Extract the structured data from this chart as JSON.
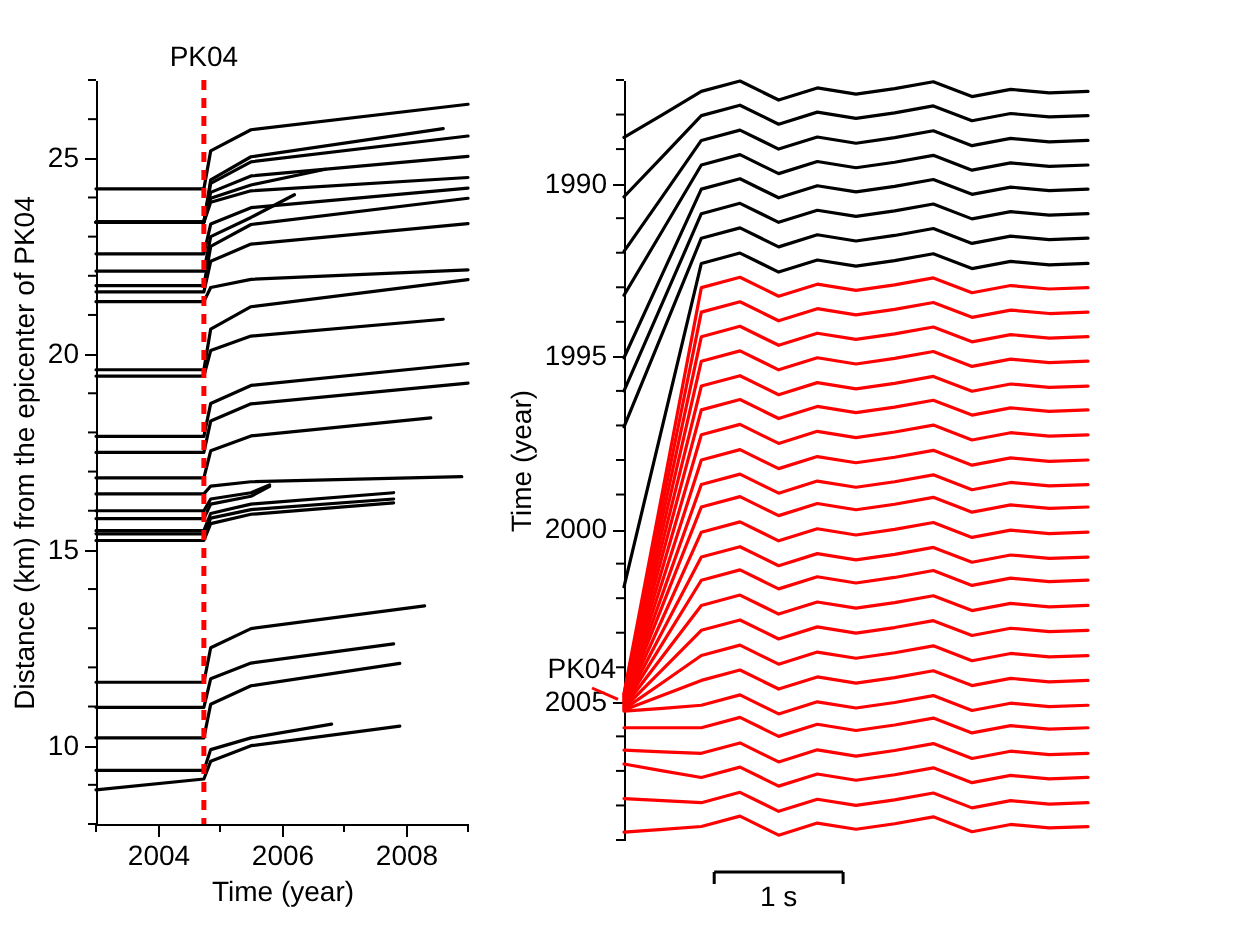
{
  "chart_data": [
    {
      "type": "line",
      "xlabel": "Time (year)",
      "ylabel": "Distance (km) from the epicenter of PK04",
      "xlim": [
        2003,
        2009
      ],
      "ylim": [
        8,
        27
      ],
      "xticks": [
        {
          "value": 2003,
          "label": null
        },
        2004,
        {
          "value": 2005,
          "label": null
        },
        2006,
        {
          "value": 2007,
          "label": null
        },
        2008,
        {
          "value": 2009,
          "label": null
        }
      ],
      "yticks": [
        {
          "value": 8,
          "label": null
        },
        {
          "value": 9,
          "label": null
        },
        10,
        {
          "value": 11,
          "label": null
        },
        {
          "value": 12,
          "label": null
        },
        {
          "value": 13,
          "label": null
        },
        {
          "value": 14,
          "label": null
        },
        15,
        {
          "value": 16,
          "label": null
        },
        {
          "value": 17,
          "label": null
        },
        {
          "value": 18,
          "label": null
        },
        {
          "value": 19,
          "label": null
        },
        20,
        {
          "value": 21,
          "label": null
        },
        {
          "value": 22,
          "label": null
        },
        {
          "value": 23,
          "label": null
        },
        {
          "value": 24,
          "label": null
        },
        25,
        {
          "value": 26,
          "label": null
        },
        {
          "value": 27,
          "label": null
        }
      ],
      "grid": false,
      "legend": false,
      "ref_lines": [
        {
          "axis": "x",
          "value": 2004.74,
          "label": "PK04",
          "color": "#ff0000",
          "line_style": "dashed"
        }
      ],
      "series": [
        {
          "color": "#000000",
          "x": [
            2003,
            2004.74,
            2004.85,
            2005.5,
            2009
          ],
          "values": [
            24.22,
            24.22,
            25.19,
            25.73,
            26.38
          ]
        },
        {
          "color": "#000000",
          "x": [
            2003,
            2004.74,
            2004.85,
            2005.5,
            2008.6
          ],
          "values": [
            23.37,
            23.37,
            24.45,
            25.04,
            25.76
          ]
        },
        {
          "color": "#000000",
          "x": [
            2003,
            2004.74,
            2004.85,
            2005.5,
            2009
          ],
          "values": [
            23.37,
            23.37,
            24.36,
            24.91,
            25.57
          ]
        },
        {
          "color": "#000000",
          "x": [
            2003,
            2004.74,
            2004.85,
            2005.5,
            2009
          ],
          "values": [
            23.37,
            23.37,
            24.13,
            24.55,
            25.05
          ]
        },
        {
          "color": "#000000",
          "x": [
            2003,
            2004.74,
            2004.85,
            2005.5,
            2006.7
          ],
          "values": [
            23.37,
            23.37,
            23.98,
            24.32,
            24.72
          ]
        },
        {
          "color": "#000000",
          "x": [
            2003,
            2004.74,
            2004.85,
            2005.5,
            2009
          ],
          "values": [
            23.37,
            23.37,
            23.88,
            24.17,
            24.51
          ]
        },
        {
          "color": "#000000",
          "x": [
            2003,
            2004.74,
            2004.85,
            2005.5,
            2009
          ],
          "values": [
            22.56,
            22.56,
            23.32,
            23.74,
            24.24
          ]
        },
        {
          "color": "#000000",
          "x": [
            2003,
            2004.74,
            2004.85,
            2005.5,
            2006.2
          ],
          "values": [
            22.12,
            22.12,
            23.0,
            23.49,
            24.07
          ]
        },
        {
          "color": "#000000",
          "x": [
            2003,
            2004.74,
            2004.85,
            2005.5,
            2009
          ],
          "values": [
            21.75,
            21.75,
            22.75,
            23.31,
            23.98
          ]
        },
        {
          "color": "#000000",
          "x": [
            2003,
            2004.74,
            2004.85,
            2005.5,
            2009
          ],
          "values": [
            21.59,
            21.59,
            22.37,
            22.81,
            23.33
          ]
        },
        {
          "color": "#000000",
          "x": [
            2003,
            2004.74,
            2004.85,
            2005.5,
            2009
          ],
          "values": [
            21.34,
            21.34,
            21.7,
            21.91,
            22.15
          ]
        },
        {
          "color": "#000000",
          "x": [
            2003,
            2004.74,
            2004.85,
            2005.5,
            2009
          ],
          "values": [
            19.6,
            19.6,
            20.64,
            21.21,
            21.9
          ]
        },
        {
          "color": "#000000",
          "x": [
            2003,
            2004.74,
            2004.85,
            2005.5,
            2008.6
          ],
          "values": [
            19.44,
            19.44,
            20.09,
            20.46,
            20.89
          ]
        },
        {
          "color": "#000000",
          "x": [
            2003,
            2004.74,
            2004.85,
            2005.5,
            2009
          ],
          "values": [
            17.9,
            17.9,
            18.74,
            19.2,
            19.76
          ]
        },
        {
          "color": "#000000",
          "x": [
            2003,
            2004.74,
            2004.85,
            2005.5,
            2009
          ],
          "values": [
            17.49,
            17.49,
            18.29,
            18.73,
            19.26
          ]
        },
        {
          "color": "#000000",
          "x": [
            2003,
            2004.74,
            2004.85,
            2005.5,
            2008.4
          ],
          "values": [
            16.84,
            16.84,
            17.53,
            17.91,
            18.37
          ]
        },
        {
          "color": "#000000",
          "x": [
            2003,
            2004.74,
            2004.85,
            2005.5,
            2008.9
          ],
          "values": [
            16.43,
            16.43,
            16.63,
            16.74,
            16.87
          ]
        },
        {
          "color": "#000000",
          "x": [
            2003,
            2004.74,
            2004.85,
            2005.5,
            2005.8
          ],
          "values": [
            16.0,
            16.0,
            16.3,
            16.46,
            16.66
          ]
        },
        {
          "color": "#000000",
          "x": [
            2003,
            2004.74,
            2004.85,
            2005.5,
            2005.8
          ],
          "values": [
            15.8,
            15.8,
            16.17,
            16.37,
            16.62
          ]
        },
        {
          "color": "#000000",
          "x": [
            2003,
            2004.74,
            2004.85,
            2005.5,
            2007.8
          ],
          "values": [
            15.49,
            15.49,
            15.93,
            16.17,
            16.46
          ]
        },
        {
          "color": "#000000",
          "x": [
            2003,
            2004.74,
            2004.85,
            2005.5,
            2007.8
          ],
          "values": [
            15.41,
            15.41,
            15.81,
            16.03,
            16.3
          ]
        },
        {
          "color": "#000000",
          "x": [
            2003,
            2004.74,
            2004.85,
            2005.5,
            2007.8
          ],
          "values": [
            15.24,
            15.24,
            15.67,
            15.91,
            16.2
          ]
        },
        {
          "color": "#000000",
          "x": [
            2003,
            2004.74,
            2004.85,
            2005.5,
            2008.3
          ],
          "values": [
            11.62,
            11.62,
            12.5,
            12.99,
            13.57
          ]
        },
        {
          "color": "#000000",
          "x": [
            2003,
            2004.74,
            2004.85,
            2005.5,
            2007.8
          ],
          "values": [
            10.98,
            10.98,
            11.71,
            12.11,
            12.6
          ]
        },
        {
          "color": "#000000",
          "x": [
            2003,
            2004.74,
            2004.85,
            2005.5,
            2007.9
          ],
          "values": [
            10.2,
            10.2,
            11.06,
            11.53,
            12.1
          ]
        },
        {
          "color": "#000000",
          "x": [
            2003,
            2004.74,
            2004.85,
            2005.5,
            2006.8
          ],
          "values": [
            9.37,
            9.37,
            9.9,
            10.2,
            10.55
          ]
        },
        {
          "color": "#000000",
          "x": [
            2003,
            2004.74,
            2004.85,
            2005.5,
            2007.9
          ],
          "values": [
            8.87,
            9.15,
            9.6,
            10.0,
            10.5
          ]
        }
      ]
    },
    {
      "type": "line",
      "ylabel": "Time (year)",
      "tick_labels": "y",
      "grid": false,
      "legend": false,
      "categories": [
        null,
        null,
        null,
        null,
        null,
        null,
        null,
        null,
        null,
        null,
        null,
        null,
        null
      ],
      "ylim": [
        2009,
        1987
      ],
      "yticks": [
        {
          "value": 1987,
          "label": null
        },
        {
          "value": 1988,
          "label": null
        },
        {
          "value": 1989,
          "label": null
        },
        1990,
        {
          "value": 1991,
          "label": null
        },
        {
          "value": 1992,
          "label": null
        },
        {
          "value": 1993,
          "label": null
        },
        {
          "value": 1994,
          "label": null
        },
        1995,
        {
          "value": 1996,
          "label": null
        },
        {
          "value": 1997,
          "label": null
        },
        {
          "value": 1998,
          "label": null
        },
        {
          "value": 1999,
          "label": null
        },
        2000,
        {
          "value": 2001,
          "label": null
        },
        {
          "value": 2002,
          "label": null
        },
        {
          "value": 2003,
          "label": null
        },
        {
          "value": 2004,
          "label": null
        },
        2005,
        {
          "value": 2006,
          "label": null
        },
        {
          "value": 2007,
          "label": null
        },
        {
          "value": 2008,
          "label": null
        },
        {
          "value": 2009,
          "label": null
        }
      ],
      "annotations": [
        "PK04",
        "1 s"
      ],
      "series": [
        {
          "color": "#000000",
          "values": [
            1988.66,
            1988.0,
            1987.33,
            1987.03,
            1987.58,
            1987.23,
            1987.41,
            1987.25,
            1987.05,
            1987.48,
            1987.27,
            1987.37,
            1987.33
          ]
        },
        {
          "color": "#000000",
          "values": [
            1990.38,
            1989.21,
            1988.03,
            1987.73,
            1988.28,
            1987.93,
            1988.11,
            1987.95,
            1987.75,
            1988.18,
            1987.97,
            1988.07,
            1988.03
          ]
        },
        {
          "color": "#000000",
          "values": [
            1991.96,
            1990.36,
            1988.75,
            1988.45,
            1989.0,
            1988.65,
            1988.83,
            1988.67,
            1988.47,
            1988.9,
            1988.69,
            1988.79,
            1988.75
          ]
        },
        {
          "color": "#000000",
          "values": [
            1993.23,
            1991.35,
            1989.46,
            1989.16,
            1989.71,
            1989.36,
            1989.54,
            1989.38,
            1989.18,
            1989.61,
            1989.4,
            1989.5,
            1989.46
          ]
        },
        {
          "color": "#000000",
          "values": [
            1995.04,
            1992.6,
            1990.16,
            1989.86,
            1990.41,
            1990.06,
            1990.24,
            1990.08,
            1989.88,
            1990.31,
            1990.1,
            1990.2,
            1990.16
          ]
        },
        {
          "color": "#000000",
          "values": [
            1996.0,
            1993.44,
            1990.87,
            1990.57,
            1991.12,
            1990.77,
            1990.95,
            1990.79,
            1990.59,
            1991.02,
            1990.81,
            1990.91,
            1990.87
          ]
        },
        {
          "color": "#000000",
          "values": [
            1997.04,
            1994.31,
            1991.58,
            1991.28,
            1991.83,
            1991.48,
            1991.66,
            1991.5,
            1991.3,
            1991.73,
            1991.52,
            1991.62,
            1991.58
          ]
        },
        {
          "color": "#000000",
          "values": [
            2001.67,
            1996.99,
            1992.31,
            1992.01,
            1992.56,
            1992.21,
            1992.39,
            1992.23,
            1992.03,
            1992.46,
            1992.25,
            1992.35,
            1992.31
          ]
        },
        {
          "color": "#ff0000",
          "values": [
            2004.76,
            1998.89,
            1993.01,
            1992.71,
            1993.26,
            1992.91,
            1993.09,
            1992.93,
            1992.73,
            1993.16,
            1992.95,
            1993.05,
            1993.01
          ]
        },
        {
          "color": "#ff0000",
          "values": [
            2004.79,
            1999.26,
            1993.72,
            1993.42,
            1993.97,
            1993.62,
            1993.8,
            1993.64,
            1993.44,
            1993.87,
            1993.66,
            1993.76,
            1993.72
          ]
        },
        {
          "color": "#ff0000",
          "values": [
            2004.82,
            1999.63,
            1994.43,
            1994.13,
            1994.68,
            1994.33,
            1994.51,
            1994.35,
            1994.15,
            1994.58,
            1994.37,
            1994.47,
            1994.43
          ]
        },
        {
          "color": "#ff0000",
          "values": [
            2004.85,
            2000.0,
            1995.14,
            1994.84,
            1995.39,
            1995.04,
            1995.22,
            1995.06,
            1994.86,
            1995.29,
            1995.08,
            1995.18,
            1995.14
          ]
        },
        {
          "color": "#ff0000",
          "values": [
            2004.88,
            2000.37,
            1995.86,
            1995.56,
            1996.11,
            1995.76,
            1995.94,
            1995.78,
            1995.58,
            1996.01,
            1995.8,
            1995.9,
            1995.86
          ]
        },
        {
          "color": "#ff0000",
          "values": [
            2004.91,
            2000.73,
            1996.55,
            1996.25,
            1996.8,
            1996.45,
            1996.63,
            1996.47,
            1996.27,
            1996.7,
            1996.49,
            1996.59,
            1996.55
          ]
        },
        {
          "color": "#ff0000",
          "values": [
            2004.94,
            2001.11,
            1997.27,
            1996.97,
            1997.52,
            1997.17,
            1997.35,
            1997.19,
            1996.99,
            1997.42,
            1997.21,
            1997.31,
            1997.27
          ]
        },
        {
          "color": "#ff0000",
          "values": [
            2004.97,
            2001.49,
            1998.0,
            1997.7,
            1998.25,
            1997.9,
            1998.08,
            1997.92,
            1997.72,
            1998.15,
            1997.94,
            1998.04,
            1998.0
          ]
        },
        {
          "color": "#ff0000",
          "values": [
            2005.0,
            2001.86,
            1998.71,
            1998.41,
            1998.96,
            1998.61,
            1998.79,
            1998.63,
            1998.43,
            1998.86,
            1998.65,
            1998.75,
            1998.71
          ]
        },
        {
          "color": "#ff0000",
          "values": [
            2005.03,
            2002.2,
            1999.36,
            1999.06,
            1999.61,
            1999.26,
            1999.44,
            1999.28,
            1999.08,
            1999.51,
            1999.3,
            1999.4,
            1999.36
          ]
        },
        {
          "color": "#ff0000",
          "values": [
            2005.06,
            2002.58,
            2000.09,
            1999.79,
            2000.34,
            1999.99,
            2000.17,
            2000.01,
            1999.81,
            2000.24,
            2000.03,
            2000.13,
            2000.09
          ]
        },
        {
          "color": "#ff0000",
          "values": [
            2005.09,
            2002.95,
            2000.81,
            2000.51,
            2001.06,
            2000.71,
            2000.89,
            2000.73,
            2000.53,
            2000.96,
            2000.75,
            2000.85,
            2000.81
          ]
        },
        {
          "color": "#ff0000",
          "values": [
            2005.12,
            2003.3,
            2001.48,
            2001.18,
            2001.73,
            2001.38,
            2001.56,
            2001.4,
            2001.2,
            2001.63,
            2001.42,
            2001.52,
            2001.48
          ]
        },
        {
          "color": "#ff0000",
          "values": [
            2005.15,
            2003.68,
            2002.21,
            2001.91,
            2002.46,
            2002.11,
            2002.29,
            2002.13,
            2001.93,
            2002.36,
            2002.15,
            2002.25,
            2002.21
          ]
        },
        {
          "color": "#ff0000",
          "values": [
            2005.18,
            2004.06,
            2002.93,
            2002.63,
            2003.18,
            2002.83,
            2003.01,
            2002.85,
            2002.65,
            2003.08,
            2002.87,
            2002.97,
            2002.93
          ]
        },
        {
          "color": "#ff0000",
          "values": [
            2005.21,
            2004.44,
            2003.66,
            2003.36,
            2003.91,
            2003.56,
            2003.74,
            2003.58,
            2003.38,
            2003.81,
            2003.6,
            2003.7,
            2003.66
          ]
        },
        {
          "color": "#ff0000",
          "values": [
            2005.24,
            2004.81,
            2004.38,
            2004.08,
            2004.63,
            2004.28,
            2004.46,
            2004.3,
            2004.1,
            2004.53,
            2004.32,
            2004.42,
            2004.38
          ]
        },
        {
          "color": "#ff0000",
          "values": [
            2005.27,
            2005.19,
            2005.1,
            2004.8,
            2005.35,
            2005.0,
            2005.18,
            2005.02,
            2004.82,
            2005.25,
            2005.04,
            2005.14,
            2005.1
          ]
        },
        {
          "color": "#ff0000",
          "values": [
            2005.75,
            2005.75,
            2005.75,
            2005.45,
            2006.0,
            2005.65,
            2005.83,
            2005.67,
            2005.47,
            2005.9,
            2005.69,
            2005.79,
            2005.75
          ]
        },
        {
          "color": "#ff0000",
          "values": [
            2006.4,
            2006.45,
            2006.49,
            2006.19,
            2006.74,
            2006.39,
            2006.57,
            2006.41,
            2006.21,
            2006.64,
            2006.43,
            2006.53,
            2006.49
          ]
        },
        {
          "color": "#ff0000",
          "values": [
            2006.8,
            2007.0,
            2007.19,
            2006.89,
            2007.44,
            2007.09,
            2007.27,
            2007.11,
            2006.91,
            2007.34,
            2007.13,
            2007.23,
            2007.19
          ]
        },
        {
          "color": "#ff0000",
          "values": [
            2007.8,
            2007.86,
            2007.92,
            2007.62,
            2008.17,
            2007.82,
            2008.0,
            2007.84,
            2007.64,
            2008.07,
            2007.86,
            2007.96,
            2007.92
          ]
        },
        {
          "color": "#ff0000",
          "values": [
            2008.77,
            2008.69,
            2008.61,
            2008.31,
            2008.86,
            2008.51,
            2008.69,
            2008.53,
            2008.33,
            2008.76,
            2008.55,
            2008.65,
            2008.61
          ]
        }
      ]
    }
  ]
}
